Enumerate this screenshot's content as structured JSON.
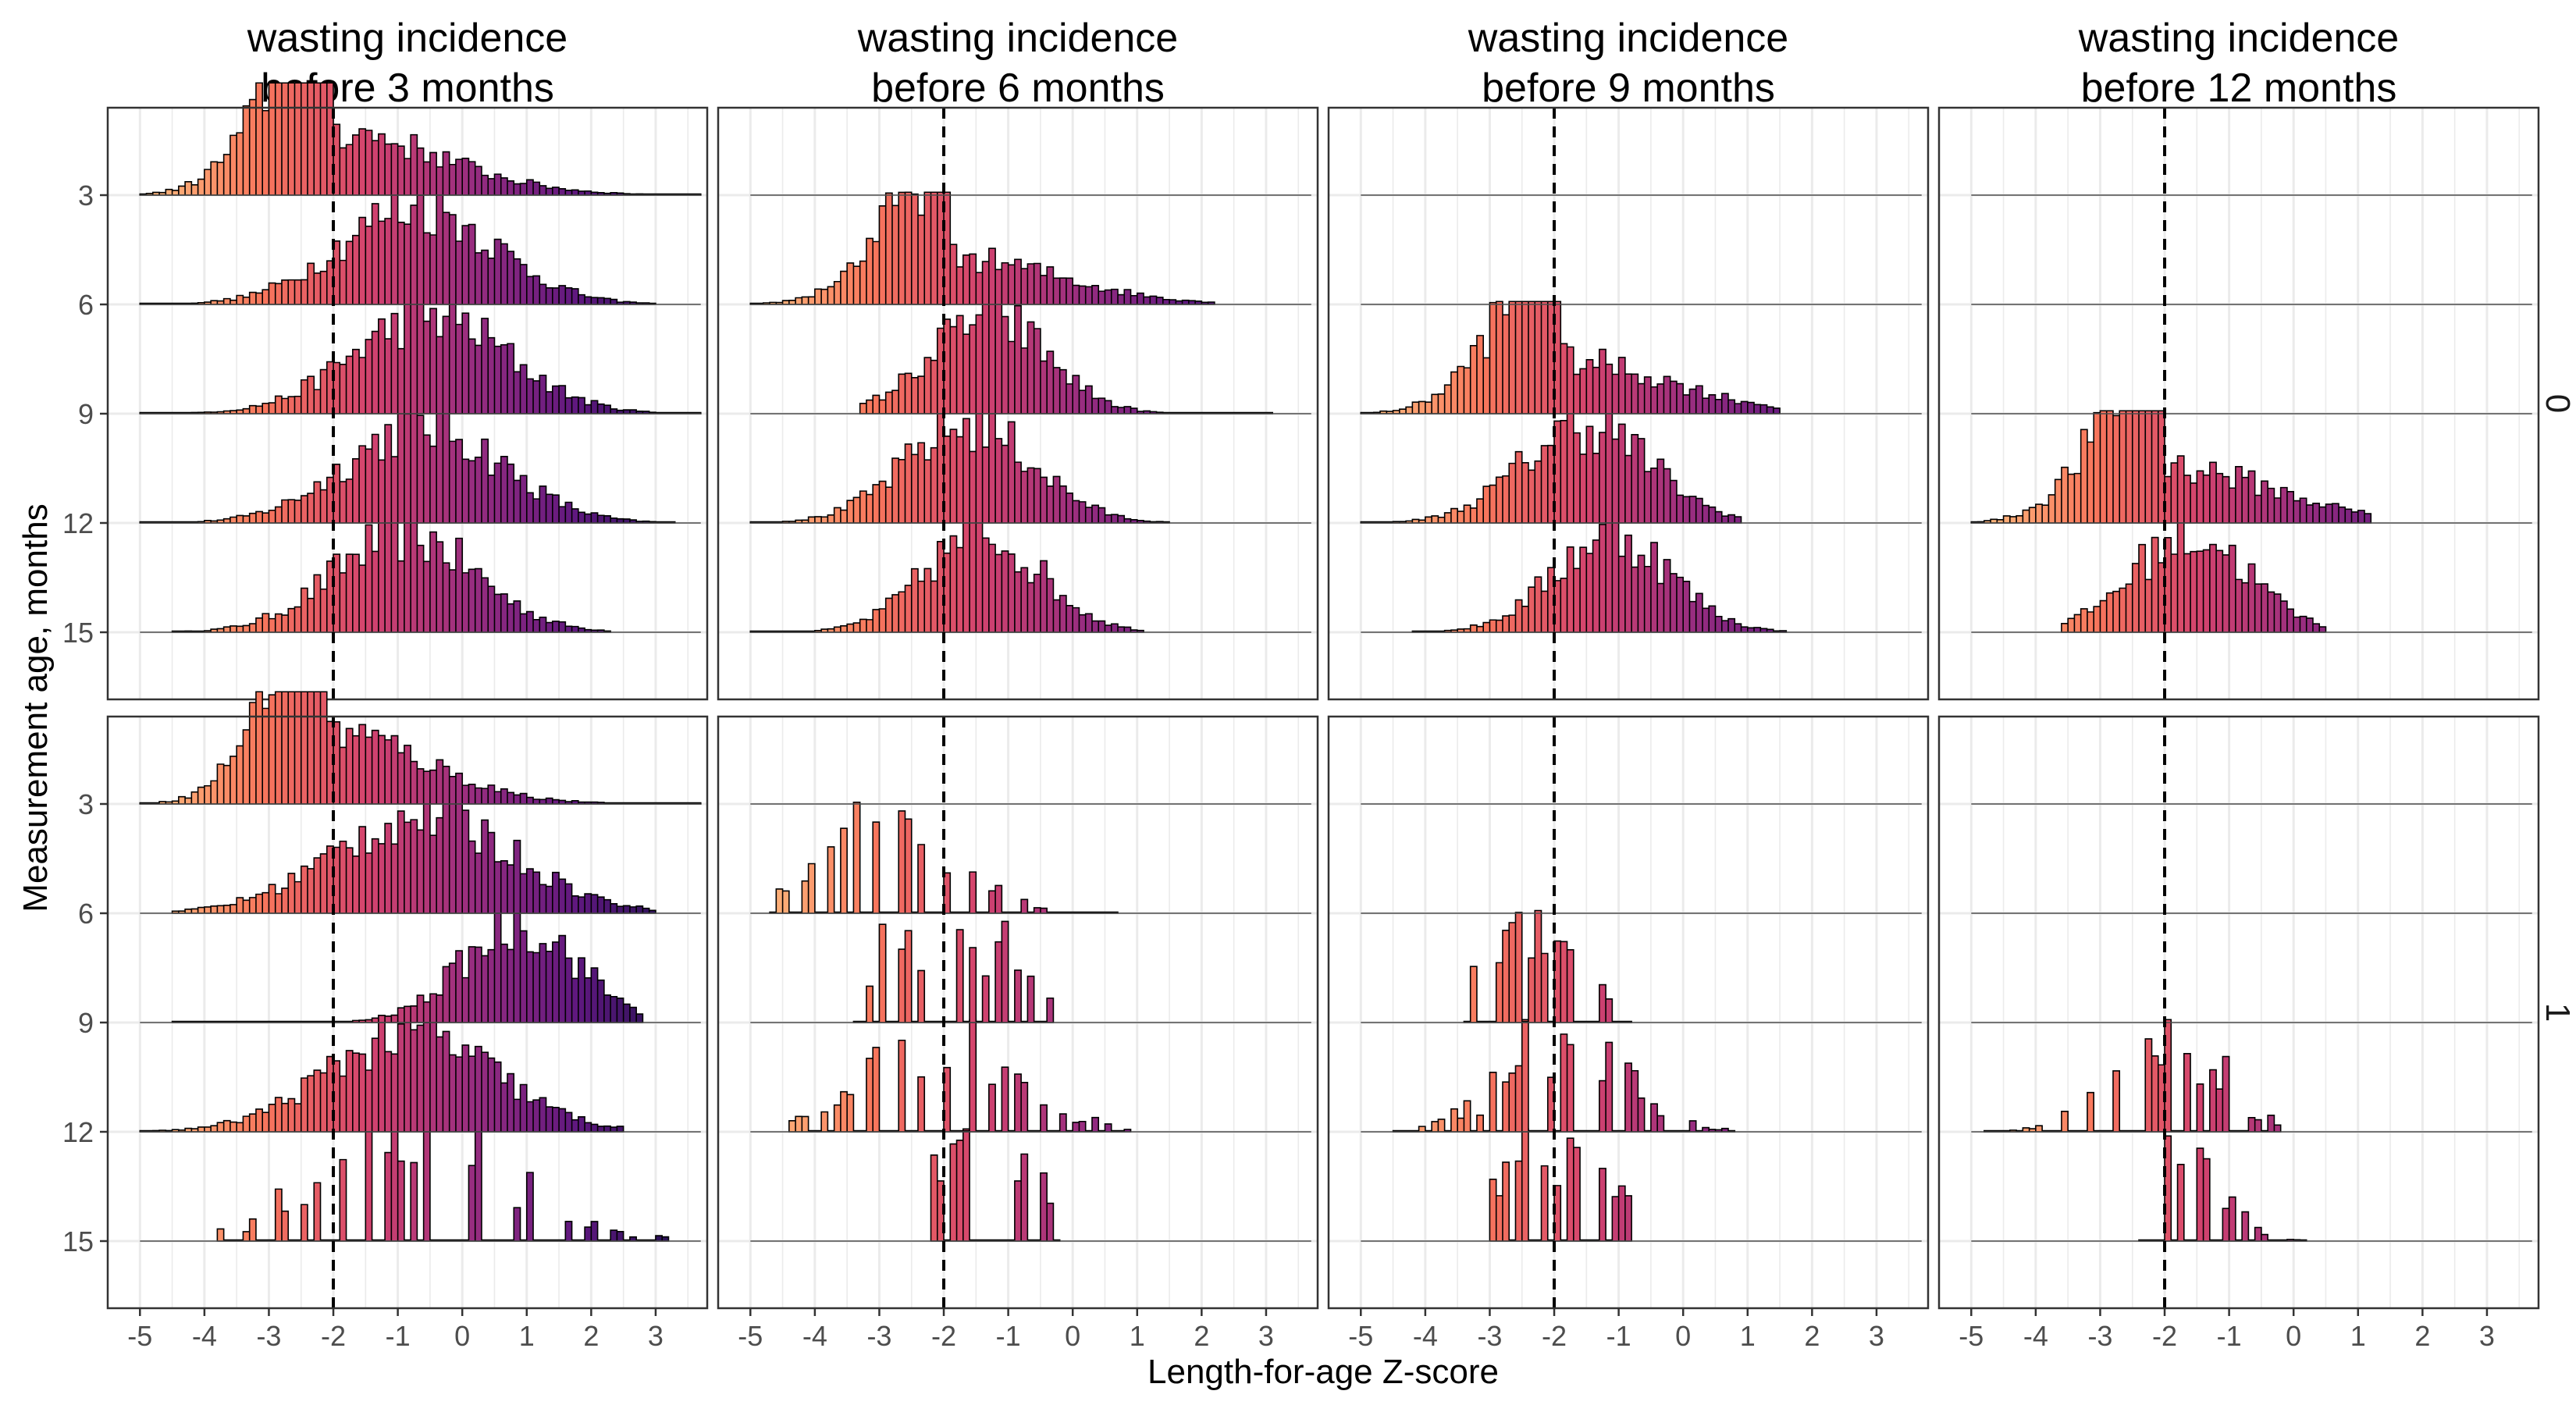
{
  "chart_data": {
    "type": "histogram-ridgeline",
    "x_label": "Length-for-age Z-score",
    "y_label": "Measurement age, months",
    "x_ticks": [
      -5,
      -4,
      -3,
      -2,
      -1,
      0,
      1,
      2,
      3
    ],
    "x_range": [
      -5.5,
      3.8
    ],
    "y_ticks": [
      3,
      6,
      9,
      12,
      15
    ],
    "reference_line_x": -2,
    "color_scale": {
      "name": "magma",
      "stops": [
        "#fdb47a",
        "#f8765c",
        "#d3436e",
        "#982d80",
        "#5f187f",
        "#221150"
      ]
    },
    "columns": [
      {
        "title_line1": "wasting incidence",
        "title_line2": "before 3 months"
      },
      {
        "title_line1": "wasting incidence",
        "title_line2": "before 6 months"
      },
      {
        "title_line1": "wasting incidence",
        "title_line2": "before 9 months"
      },
      {
        "title_line1": "wasting incidence",
        "title_line2": "before 12 months"
      }
    ],
    "rows": [
      {
        "strip": "0"
      },
      {
        "strip": "1"
      }
    ],
    "panels": [
      [
        {
          "present": [
            1,
            1,
            1,
            1,
            1
          ],
          "shape": [
            [
              "skew",
              -2.1,
              0.9,
              1.9
            ],
            [
              "normal",
              -0.7,
              1.2,
              1
            ],
            [
              "normal",
              -0.5,
              1.2,
              1
            ],
            [
              "normal",
              -0.6,
              1.2,
              1
            ],
            [
              "normal",
              -0.9,
              1.1,
              1
            ]
          ],
          "range": [
            [
              -5.0,
              3.7
            ],
            [
              -5.0,
              3.0
            ],
            [
              -5.0,
              3.7
            ],
            [
              -5.0,
              3.3
            ],
            [
              -4.5,
              2.3
            ]
          ]
        },
        {
          "present": [
            0,
            1,
            1,
            1,
            1
          ],
          "shape": [
            null,
            [
              "skew",
              -2.0,
              0.9,
              1.4
            ],
            [
              "normal",
              -1.3,
              0.9,
              1
            ],
            [
              "normal",
              -1.6,
              1.0,
              1
            ],
            [
              "normal",
              -1.4,
              0.9,
              1
            ]
          ],
          "range": [
            null,
            [
              -5.0,
              2.2
            ],
            [
              -3.3,
              3.1
            ],
            [
              -5.0,
              1.5
            ],
            [
              -5.0,
              1.1
            ]
          ]
        },
        {
          "present": [
            0,
            0,
            1,
            1,
            1
          ],
          "shape": [
            null,
            null,
            [
              "skew",
              -2.0,
              0.9,
              1.6
            ],
            [
              "normal",
              -1.5,
              1.0,
              1
            ],
            [
              "normal",
              -1.1,
              0.9,
              1
            ]
          ],
          "range": [
            null,
            null,
            [
              -5.0,
              1.5
            ],
            [
              -5.0,
              0.9
            ],
            [
              -4.2,
              1.6
            ]
          ]
        },
        {
          "present": [
            0,
            0,
            0,
            1,
            1
          ],
          "shape": [
            null,
            null,
            null,
            [
              "skew",
              -2.1,
              0.9,
              1.7
            ],
            [
              "normal",
              -1.6,
              0.9,
              1
            ]
          ],
          "range": [
            null,
            null,
            null,
            [
              -5.0,
              1.2
            ],
            [
              -3.6,
              0.5
            ]
          ]
        }
      ],
      [
        {
          "present": [
            1,
            1,
            1,
            1,
            1
          ],
          "shape": [
            [
              "skew",
              -2.2,
              0.8,
              2.2
            ],
            [
              "normal",
              -0.6,
              1.4,
              1
            ],
            [
              "normal",
              0.9,
              0.9,
              1
            ],
            [
              "normal",
              -0.8,
              1.3,
              1
            ],
            [
              "normal",
              -0.7,
              1.5,
              1
            ]
          ],
          "range": [
            [
              -5.0,
              3.7
            ],
            [
              -4.5,
              3.0
            ],
            [
              -4.5,
              2.8
            ],
            [
              -5.0,
              2.5
            ],
            [
              -3.8,
              3.2
            ]
          ]
        },
        {
          "present": [
            0,
            1,
            1,
            1,
            1
          ],
          "shape": [
            null,
            [
              "normal",
              -2.8,
              1.0,
              1
            ],
            [
              "normal",
              -2.0,
              1.2,
              1
            ],
            [
              "normal",
              -2.0,
              1.1,
              1
            ],
            [
              "normal",
              -1.5,
              1.0,
              1
            ]
          ],
          "range": [
            null,
            [
              -4.7,
              0.7
            ],
            [
              -3.4,
              -0.3
            ],
            [
              -4.4,
              0.9
            ],
            [
              -2.2,
              -0.2
            ]
          ]
        },
        {
          "present": [
            0,
            0,
            1,
            1,
            1
          ],
          "shape": [
            null,
            null,
            [
              "normal",
              -2.3,
              0.8,
              1
            ],
            [
              "normal",
              -1.8,
              0.9,
              1
            ],
            [
              "normal",
              -1.9,
              1.0,
              1
            ]
          ],
          "range": [
            null,
            null,
            [
              -3.4,
              -0.8
            ],
            [
              -4.5,
              0.8
            ],
            [
              -3.0,
              -0.8
            ]
          ]
        },
        {
          "present": [
            0,
            0,
            0,
            1,
            1
          ],
          "shape": [
            null,
            null,
            null,
            [
              "normal",
              -2.0,
              0.8,
              1
            ],
            [
              "normal",
              -1.7,
              0.6,
              1
            ]
          ],
          "range": [
            null,
            null,
            null,
            [
              -4.8,
              -0.2
            ],
            [
              -2.4,
              0.2
            ]
          ]
        }
      ]
    ]
  }
}
